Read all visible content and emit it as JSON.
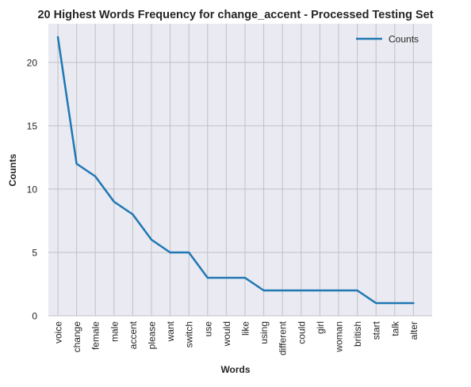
{
  "chart_data": {
    "type": "line",
    "title": "20 Highest Words Frequency for change_accent - Processed Testing Set",
    "xlabel": "Words",
    "ylabel": "Counts",
    "categories": [
      "voice",
      "change",
      "female",
      "male",
      "accent",
      "please",
      "want",
      "switch",
      "use",
      "would",
      "like",
      "using",
      "different",
      "could",
      "girl",
      "woman",
      "british",
      "start",
      "talk",
      "alter"
    ],
    "series": [
      {
        "name": "Counts",
        "values": [
          22,
          12,
          11,
          9,
          8,
          6,
          5,
          5,
          3,
          3,
          3,
          2,
          2,
          2,
          2,
          2,
          2,
          1,
          1,
          1
        ]
      }
    ],
    "ylim": [
      0,
      23.05
    ],
    "yticks": [
      0,
      5,
      10,
      15,
      20
    ],
    "grid": true,
    "legend_position": "top-right",
    "colors": {
      "line": "#1f77b4",
      "plot_background": "#eaeaf2",
      "grid": "#c0c0c4"
    }
  }
}
